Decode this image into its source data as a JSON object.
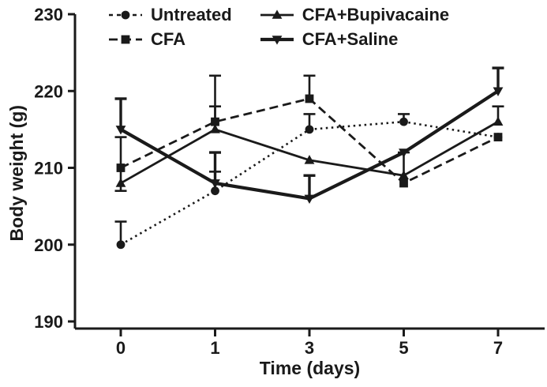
{
  "figure": {
    "background": "#ffffff",
    "ink_color": "#1a1a1a"
  },
  "chart_data": {
    "type": "line",
    "title": "",
    "xlabel": "Time (days)",
    "ylabel": "Body weight (g)",
    "categories": [
      "0",
      "1",
      "3",
      "5",
      "7"
    ],
    "ylim": [
      190,
      230
    ],
    "yticks": [
      190,
      200,
      210,
      220,
      230
    ],
    "grid": false,
    "legend_position": "top",
    "error_bars": "upper caps (SEM)",
    "series": [
      {
        "name": "Untreated",
        "marker": "circle",
        "line": "dotted",
        "values": [
          200,
          207,
          215,
          216,
          214
        ],
        "err_up": [
          3,
          2.5,
          2,
          1,
          0
        ],
        "err_down": [
          0,
          0,
          0,
          0,
          0
        ]
      },
      {
        "name": "CFA",
        "marker": "square",
        "line": "dashed",
        "values": [
          210,
          216,
          219,
          208,
          214
        ],
        "err_up": [
          4,
          6,
          3,
          4,
          0
        ],
        "err_down": [
          3,
          0,
          0,
          0,
          0
        ]
      },
      {
        "name": "CFA+Bupivacaine",
        "marker": "triangle-up",
        "line": "solid",
        "values": [
          208,
          215,
          211,
          209,
          216
        ],
        "err_up": [
          0,
          3,
          0,
          0,
          2
        ],
        "err_down": [
          0,
          0,
          0,
          0,
          0
        ]
      },
      {
        "name": "CFA+Saline",
        "marker": "triangle-down",
        "line": "solid-thick",
        "values": [
          215,
          208,
          206,
          212,
          220
        ],
        "err_up": [
          4,
          4,
          3,
          0,
          3
        ],
        "err_down": [
          0,
          0,
          0,
          0,
          0
        ]
      }
    ]
  }
}
